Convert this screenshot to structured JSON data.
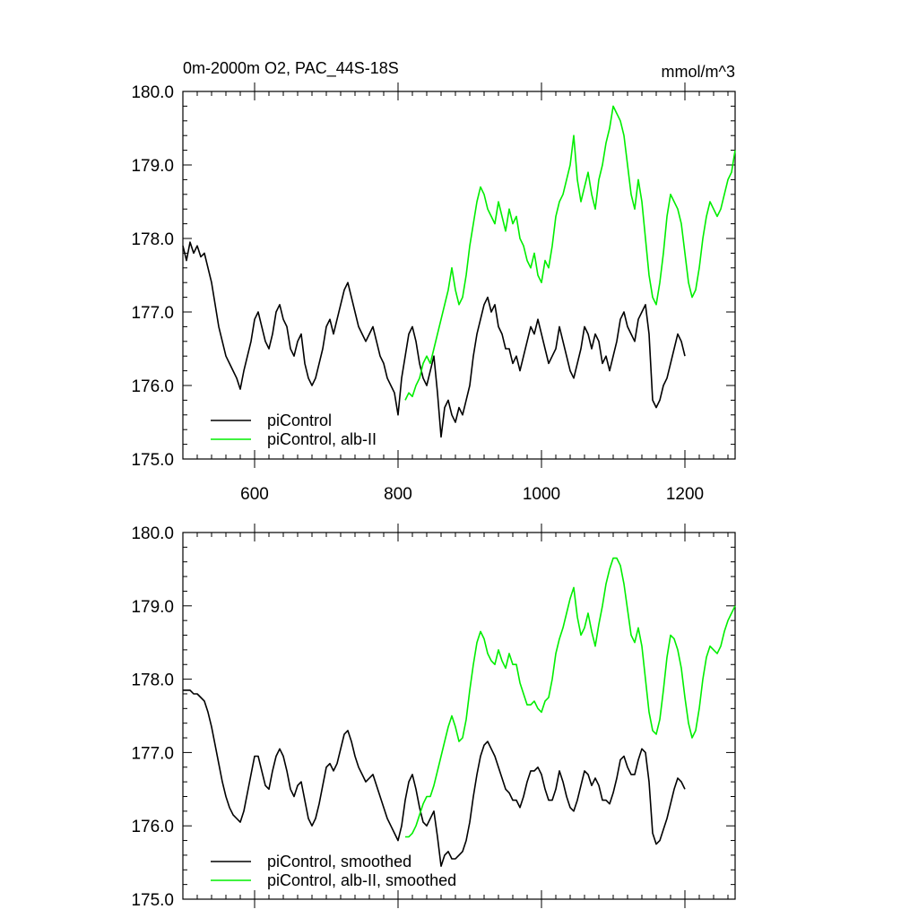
{
  "colors": {
    "control": "#000000",
    "albII": "#00ee00"
  },
  "chart_data": [
    {
      "type": "line",
      "title": "0m-2000m O2, PAC_44S-18S",
      "units": "mmol/m^3",
      "xlim": [
        500,
        1270
      ],
      "ylim": [
        175,
        180
      ],
      "xticks": [
        600,
        800,
        1000,
        1200
      ],
      "yticks": [
        175.0,
        176.0,
        177.0,
        178.0,
        179.0,
        180.0
      ],
      "ytick_labels": [
        "175.0",
        "176.0",
        "177.0",
        "178.0",
        "179.0",
        "180.0"
      ],
      "xtick_labels": [
        "600",
        "800",
        "1000",
        "1200"
      ],
      "legend": [
        "piControl",
        "piControl, alb-II"
      ],
      "series": [
        {
          "name": "piControl",
          "color": "#000000",
          "x": [
            500,
            505,
            510,
            515,
            520,
            525,
            530,
            535,
            540,
            545,
            550,
            555,
            560,
            565,
            570,
            575,
            580,
            585,
            590,
            595,
            600,
            605,
            610,
            615,
            620,
            625,
            630,
            635,
            640,
            645,
            650,
            655,
            660,
            665,
            670,
            675,
            680,
            685,
            690,
            695,
            700,
            705,
            710,
            715,
            720,
            725,
            730,
            735,
            740,
            745,
            750,
            755,
            760,
            765,
            770,
            775,
            780,
            785,
            790,
            795,
            800,
            805,
            810,
            815,
            820,
            825,
            830,
            835,
            840,
            845,
            850,
            855,
            860,
            865,
            870,
            875,
            880,
            885,
            890,
            895,
            900,
            905,
            910,
            915,
            920,
            925,
            930,
            935,
            940,
            945,
            950,
            955,
            960,
            965,
            970,
            975,
            980,
            985,
            990,
            995,
            1000,
            1005,
            1010,
            1015,
            1020,
            1025,
            1030,
            1035,
            1040,
            1045,
            1050,
            1055,
            1060,
            1065,
            1070,
            1075,
            1080,
            1085,
            1090,
            1095,
            1100,
            1105,
            1110,
            1115,
            1120,
            1125,
            1130,
            1135,
            1140,
            1145,
            1150,
            1155,
            1160,
            1165,
            1170,
            1175,
            1180,
            1185,
            1190,
            1195,
            1200
          ],
          "values": [
            177.9,
            177.7,
            177.95,
            177.8,
            177.9,
            177.75,
            177.8,
            177.6,
            177.4,
            177.1,
            176.8,
            176.6,
            176.4,
            176.3,
            176.2,
            176.1,
            175.95,
            176.2,
            176.4,
            176.6,
            176.9,
            177.0,
            176.8,
            176.6,
            176.5,
            176.7,
            177.0,
            177.1,
            176.9,
            176.8,
            176.5,
            176.4,
            176.6,
            176.7,
            176.3,
            176.1,
            176.0,
            176.1,
            176.3,
            176.5,
            176.8,
            176.9,
            176.7,
            176.9,
            177.1,
            177.3,
            177.4,
            177.2,
            177.0,
            176.8,
            176.7,
            176.6,
            176.7,
            176.8,
            176.6,
            176.4,
            176.3,
            176.1,
            176.0,
            175.9,
            175.6,
            176.1,
            176.4,
            176.7,
            176.8,
            176.6,
            176.3,
            176.1,
            176.0,
            176.2,
            176.4,
            175.9,
            175.3,
            175.7,
            175.8,
            175.6,
            175.5,
            175.7,
            175.6,
            175.8,
            176.0,
            176.4,
            176.7,
            176.9,
            177.1,
            177.2,
            177.0,
            177.1,
            176.8,
            176.7,
            176.5,
            176.5,
            176.3,
            176.4,
            176.2,
            176.4,
            176.6,
            176.8,
            176.7,
            176.9,
            176.7,
            176.5,
            176.3,
            176.4,
            176.5,
            176.8,
            176.6,
            176.4,
            176.2,
            176.1,
            176.3,
            176.5,
            176.8,
            176.7,
            176.5,
            176.7,
            176.6,
            176.3,
            176.4,
            176.2,
            176.4,
            176.6,
            176.9,
            177.0,
            176.8,
            176.7,
            176.6,
            176.9,
            177.0,
            177.1,
            176.7,
            175.8,
            175.7,
            175.8,
            176.0,
            176.1,
            176.3,
            176.5,
            176.7,
            176.6,
            176.4
          ],
          "smoothed": [
            177.85,
            177.85,
            177.85,
            177.8,
            177.8,
            177.75,
            177.7,
            177.55,
            177.35,
            177.1,
            176.85,
            176.6,
            176.4,
            176.25,
            176.15,
            176.1,
            176.05,
            176.2,
            176.45,
            176.7,
            176.95,
            176.95,
            176.75,
            176.55,
            176.5,
            176.75,
            176.95,
            177.05,
            176.95,
            176.75,
            176.5,
            176.4,
            176.55,
            176.6,
            176.35,
            176.1,
            176.0,
            176.1,
            176.3,
            176.55,
            176.8,
            176.85,
            176.75,
            176.85,
            177.05,
            177.25,
            177.3,
            177.15,
            176.95,
            176.8,
            176.7,
            176.6,
            176.65,
            176.7,
            176.55,
            176.4,
            176.25,
            176.1,
            176.0,
            175.9,
            175.8,
            176.0,
            176.35,
            176.6,
            176.7,
            176.5,
            176.25,
            176.05,
            176.0,
            176.1,
            176.2,
            175.85,
            175.45,
            175.6,
            175.65,
            175.55,
            175.55,
            175.6,
            175.65,
            175.8,
            176.05,
            176.4,
            176.7,
            176.95,
            177.1,
            177.15,
            177.05,
            176.95,
            176.8,
            176.65,
            176.5,
            176.45,
            176.35,
            176.35,
            176.25,
            176.4,
            176.6,
            176.75,
            176.75,
            176.8,
            176.7,
            176.5,
            176.35,
            176.35,
            176.5,
            176.75,
            176.6,
            176.4,
            176.25,
            176.2,
            176.35,
            176.55,
            176.75,
            176.7,
            176.55,
            176.65,
            176.55,
            176.35,
            176.35,
            176.3,
            176.45,
            176.65,
            176.9,
            176.95,
            176.8,
            176.7,
            176.7,
            176.9,
            177.05,
            177.0,
            176.6,
            175.9,
            175.75,
            175.8,
            175.95,
            176.1,
            176.3,
            176.5,
            176.65,
            176.6,
            176.5
          ]
        },
        {
          "name": "piControl, alb-II",
          "color": "#00ee00",
          "x": [
            810,
            815,
            820,
            825,
            830,
            835,
            840,
            845,
            850,
            855,
            860,
            865,
            870,
            875,
            880,
            885,
            890,
            895,
            900,
            905,
            910,
            915,
            920,
            925,
            930,
            935,
            940,
            945,
            950,
            955,
            960,
            965,
            970,
            975,
            980,
            985,
            990,
            995,
            1000,
            1005,
            1010,
            1015,
            1020,
            1025,
            1030,
            1035,
            1040,
            1045,
            1050,
            1055,
            1060,
            1065,
            1070,
            1075,
            1080,
            1085,
            1090,
            1095,
            1100,
            1105,
            1110,
            1115,
            1120,
            1125,
            1130,
            1135,
            1140,
            1145,
            1150,
            1155,
            1160,
            1165,
            1170,
            1175,
            1180,
            1185,
            1190,
            1195,
            1200,
            1205,
            1210,
            1215,
            1220,
            1225,
            1230,
            1235,
            1240,
            1245,
            1250,
            1255,
            1260,
            1265,
            1270
          ],
          "values": [
            175.8,
            175.9,
            175.85,
            176.0,
            176.1,
            176.3,
            176.4,
            176.3,
            176.5,
            176.7,
            176.9,
            177.1,
            177.3,
            177.6,
            177.3,
            177.1,
            177.2,
            177.5,
            177.9,
            178.2,
            178.5,
            178.7,
            178.6,
            178.4,
            178.3,
            178.2,
            178.5,
            178.3,
            178.1,
            178.4,
            178.2,
            178.3,
            178.0,
            177.9,
            177.7,
            177.6,
            177.8,
            177.5,
            177.4,
            177.7,
            177.6,
            177.9,
            178.3,
            178.5,
            178.6,
            178.8,
            179.0,
            179.4,
            178.8,
            178.5,
            178.7,
            178.9,
            178.6,
            178.4,
            178.8,
            179.0,
            179.3,
            179.5,
            179.8,
            179.7,
            179.6,
            179.4,
            179.0,
            178.6,
            178.4,
            178.8,
            178.5,
            178.0,
            177.5,
            177.2,
            177.1,
            177.4,
            177.8,
            178.3,
            178.6,
            178.5,
            178.4,
            178.2,
            177.8,
            177.4,
            177.2,
            177.3,
            177.6,
            178.0,
            178.3,
            178.5,
            178.4,
            178.3,
            178.4,
            178.6,
            178.8,
            178.9,
            179.2
          ],
          "smoothed": [
            175.85,
            175.85,
            175.9,
            176.0,
            176.15,
            176.3,
            176.4,
            176.4,
            176.55,
            176.75,
            176.95,
            177.15,
            177.35,
            177.5,
            177.35,
            177.15,
            177.2,
            177.45,
            177.85,
            178.2,
            178.5,
            178.65,
            178.55,
            178.35,
            178.25,
            178.2,
            178.4,
            178.25,
            178.15,
            178.35,
            178.2,
            178.2,
            177.95,
            177.8,
            177.65,
            177.65,
            177.7,
            177.6,
            177.55,
            177.7,
            177.75,
            178.0,
            178.35,
            178.55,
            178.7,
            178.9,
            179.1,
            179.25,
            178.85,
            178.6,
            178.7,
            178.9,
            178.65,
            178.45,
            178.75,
            179.0,
            179.3,
            179.5,
            179.65,
            179.65,
            179.55,
            179.3,
            178.95,
            178.6,
            178.5,
            178.7,
            178.45,
            178.0,
            177.55,
            177.3,
            177.25,
            177.45,
            177.85,
            178.3,
            178.6,
            178.55,
            178.4,
            178.15,
            177.75,
            177.4,
            177.2,
            177.3,
            177.6,
            178.0,
            178.3,
            178.45,
            178.4,
            178.35,
            178.45,
            178.65,
            178.8,
            178.9,
            179.0
          ]
        }
      ]
    },
    {
      "type": "line",
      "title": "",
      "units": "",
      "xlim": [
        500,
        1270
      ],
      "ylim": [
        175,
        180
      ],
      "xticks": [
        600,
        800,
        1000,
        1200
      ],
      "yticks": [
        175.0,
        176.0,
        177.0,
        178.0,
        179.0,
        180.0
      ],
      "ytick_labels": [
        "175.0",
        "176.0",
        "177.0",
        "178.0",
        "179.0",
        "180.0"
      ],
      "legend": [
        "piControl, smoothed",
        "piControl, alb-II, smoothed"
      ]
    }
  ]
}
